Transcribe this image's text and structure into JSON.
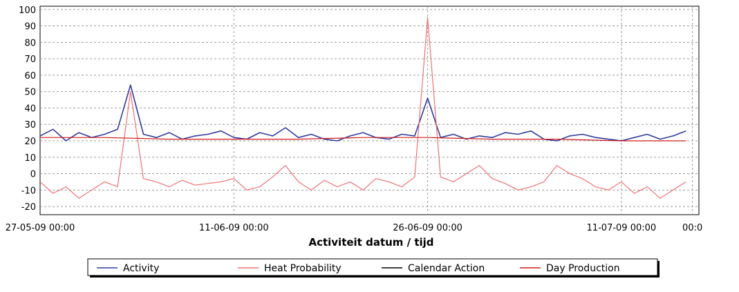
{
  "chart_data": {
    "type": "line",
    "title": "",
    "xlabel": "Activiteit datum / tijd",
    "ylabel": "",
    "ylim": [
      -25,
      102
    ],
    "yticks": [
      100,
      90,
      80,
      70,
      60,
      50,
      40,
      30,
      20,
      10,
      0,
      -10,
      -20
    ],
    "x_range_days": [
      0,
      51
    ],
    "xticks": [
      {
        "day": 0,
        "label": "27-05-09 00:00"
      },
      {
        "day": 15,
        "label": "11-06-09 00:00"
      },
      {
        "day": 30,
        "label": "26-06-09 00:00"
      },
      {
        "day": 45,
        "label": "11-07-09 00:00"
      },
      {
        "day": 50.5,
        "label": "00:0"
      }
    ],
    "grid": true,
    "legend_position": "bottom",
    "series": [
      {
        "name": "Activity",
        "color": "#2e3a9e",
        "x_step_days": 1,
        "values": [
          23,
          27,
          20,
          25,
          22,
          24,
          27,
          54,
          24,
          22,
          25,
          21,
          23,
          24,
          26,
          22,
          21,
          25,
          23,
          28,
          22,
          24,
          21,
          20,
          23,
          25,
          22,
          21,
          24,
          23,
          46,
          22,
          24,
          21,
          23,
          22,
          25,
          24,
          26,
          21,
          20,
          23,
          24,
          22,
          21,
          20,
          22,
          24,
          21,
          23,
          26
        ]
      },
      {
        "name": "Heat Probability",
        "color": "#f07070",
        "x_step_days": 1,
        "values": [
          -5,
          -12,
          -8,
          -15,
          -10,
          -5,
          -8,
          50,
          -3,
          -5,
          -8,
          -4,
          -7,
          -6,
          -5,
          -3,
          -10,
          -8,
          -2,
          5,
          -5,
          -10,
          -4,
          -8,
          -5,
          -10,
          -3,
          -5,
          -8,
          -2,
          95,
          -2,
          -5,
          0,
          5,
          -3,
          -6,
          -10,
          -8,
          -5,
          5,
          0,
          -3,
          -8,
          -10,
          -5,
          -12,
          -8,
          -15,
          -10,
          -5
        ]
      },
      {
        "name": "Calendar Action",
        "color": "#000000",
        "values": []
      },
      {
        "name": "Day Production",
        "color": "#d01818",
        "x_step_days": 5,
        "values": [
          22,
          22,
          21,
          21,
          21,
          22,
          22,
          21,
          21,
          20,
          20
        ]
      }
    ]
  }
}
